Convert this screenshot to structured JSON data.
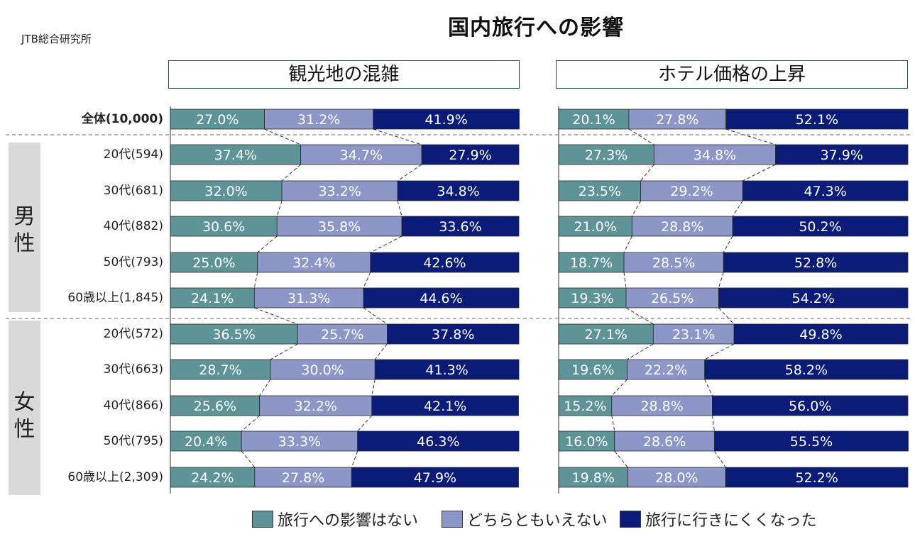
{
  "source": "JTB総合研究所",
  "title": "国内旅行への影響",
  "colors": {
    "none": "#5e9497",
    "neither": "#8c97c8",
    "harder": "#0b1b78",
    "divider": "#808080",
    "side": "#d9d9d9"
  },
  "groups": {
    "male": "男性",
    "female": "女性"
  },
  "chart_data": [
    {
      "type": "bar",
      "stacked": "horizontal-100%",
      "title": "観光地の混雑",
      "categories": [
        "全体(10,000)",
        "20代(594)",
        "30代(681)",
        "40代(882)",
        "50代(793)",
        "60歳以上(1,845)",
        "20代(572)",
        "30代(663)",
        "40代(866)",
        "50代(795)",
        "60歳以上(2,309)"
      ],
      "series": [
        {
          "name": "旅行への影響はない",
          "values": [
            27.0,
            37.4,
            32.0,
            30.6,
            25.0,
            24.1,
            36.5,
            28.7,
            25.6,
            20.4,
            24.2
          ]
        },
        {
          "name": "どちらともいえない",
          "values": [
            31.2,
            34.7,
            33.2,
            35.8,
            32.4,
            31.3,
            25.7,
            30.0,
            32.2,
            33.3,
            27.8
          ]
        },
        {
          "name": "旅行に行きにくくなった",
          "values": [
            41.9,
            27.9,
            34.8,
            33.6,
            42.6,
            44.6,
            37.8,
            41.3,
            42.1,
            46.3,
            47.9
          ]
        }
      ],
      "xlim": [
        0,
        100
      ],
      "legend": "bottom"
    },
    {
      "type": "bar",
      "stacked": "horizontal-100%",
      "title": "ホテル価格の上昇",
      "categories": [
        "全体(10,000)",
        "20代(594)",
        "30代(681)",
        "40代(882)",
        "50代(793)",
        "60歳以上(1,845)",
        "20代(572)",
        "30代(663)",
        "40代(866)",
        "50代(795)",
        "60歳以上(2,309)"
      ],
      "series": [
        {
          "name": "旅行への影響はない",
          "values": [
            20.1,
            27.3,
            23.5,
            21.0,
            18.7,
            19.3,
            27.1,
            19.6,
            15.2,
            16.0,
            19.8
          ]
        },
        {
          "name": "どちらともいえない",
          "values": [
            27.8,
            34.8,
            29.2,
            28.8,
            28.5,
            26.5,
            23.1,
            22.2,
            28.8,
            28.6,
            28.0
          ]
        },
        {
          "name": "旅行に行きにくくなった",
          "values": [
            52.1,
            37.9,
            47.3,
            50.2,
            52.8,
            54.2,
            49.8,
            58.2,
            56.0,
            55.5,
            52.2
          ]
        }
      ],
      "xlim": [
        0,
        100
      ],
      "legend": "bottom"
    }
  ]
}
